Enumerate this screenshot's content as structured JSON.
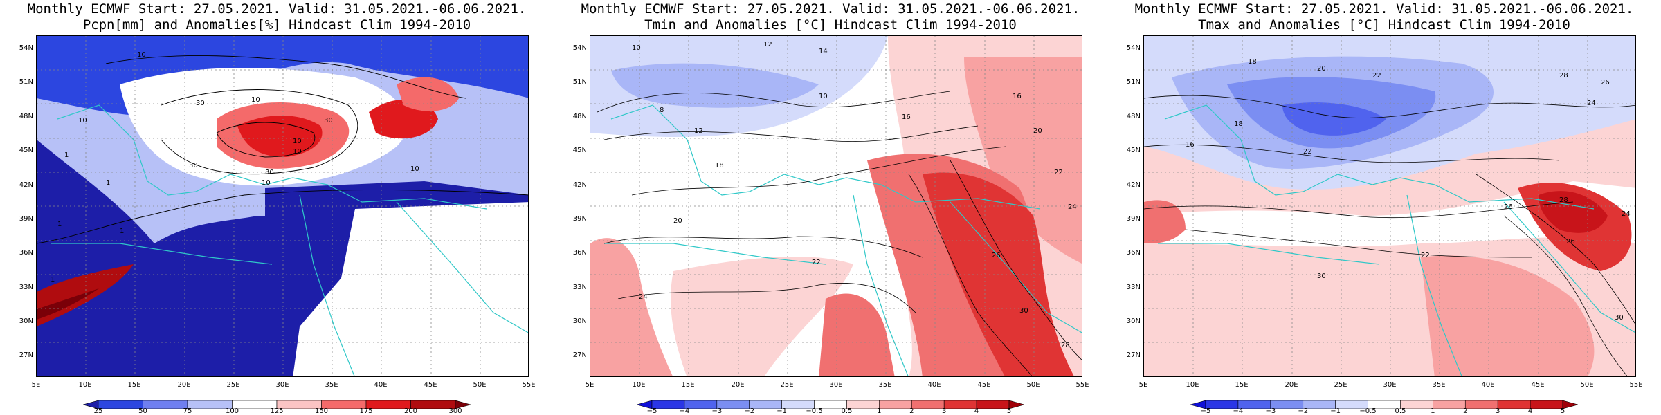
{
  "panels": [
    {
      "title1": "Monthly ECMWF Start: 27.05.2021. Valid: 31.05.2021.-06.06.2021.",
      "title2": "Pcpn[mm] and Anomalies[%] Hindcast Clim 1994-2010",
      "colorbar": {
        "labels": [
          "25",
          "50",
          "75",
          "100",
          "125",
          "150",
          "175",
          "200",
          "300"
        ],
        "colors": [
          "#1d1ea8",
          "#2c46e0",
          "#6f7ff0",
          "#b7c1f7",
          "#ffffff",
          "#fbc4c4",
          "#f46a6a",
          "#e0191d",
          "#b00c0f",
          "#7a0008"
        ]
      },
      "contour_labels": [
        "10",
        "10",
        "30",
        "30",
        "10",
        "30",
        "10",
        "10",
        "10",
        "30",
        "10",
        "1",
        "1",
        "1",
        "1",
        "1"
      ]
    },
    {
      "title1": "Monthly ECMWF Start: 27.05.2021. Valid: 31.05.2021.-06.06.2021.",
      "title2": "Tmin and Anomalies [°C] Hindcast Clim 1994-2010",
      "colorbar": {
        "labels": [
          "−5",
          "−4",
          "−3",
          "−2",
          "−1",
          "−0.5",
          "0.5",
          "1",
          "2",
          "3",
          "4",
          "5"
        ],
        "colors": [
          "#1010d8",
          "#2b36e6",
          "#5063ee",
          "#7b8ef2",
          "#a9b6f7",
          "#d4dbfb",
          "#ffffff",
          "#fcd4d4",
          "#f8a2a2",
          "#f07070",
          "#e03434",
          "#c8141a",
          "#a00008"
        ]
      },
      "contour_labels": [
        "10",
        "12",
        "14",
        "16",
        "18",
        "20",
        "22",
        "24",
        "26",
        "28",
        "30",
        "8",
        "10",
        "12",
        "16",
        "20",
        "22",
        "24"
      ]
    },
    {
      "title1": "Monthly ECMWF Start: 27.05.2021. Valid: 31.05.2021.-06.06.2021.",
      "title2": "Tmax and Anomalies [°C] Hindcast Clim 1994-2010",
      "colorbar": {
        "labels": [
          "−5",
          "−4",
          "−3",
          "−2",
          "−1",
          "−0.5",
          "0.5",
          "1",
          "2",
          "3",
          "4",
          "5"
        ],
        "colors": [
          "#1010d8",
          "#2b36e6",
          "#5063ee",
          "#7b8ef2",
          "#a9b6f7",
          "#d4dbfb",
          "#ffffff",
          "#fcd4d4",
          "#f8a2a2",
          "#f07070",
          "#e03434",
          "#c8141a",
          "#a00008"
        ]
      },
      "contour_labels": [
        "18",
        "20",
        "22",
        "24",
        "26",
        "28",
        "30",
        "16",
        "18",
        "22",
        "26",
        "28",
        "22",
        "24",
        "26",
        "30"
      ]
    }
  ],
  "axes": {
    "lat_labels": [
      "54N",
      "51N",
      "48N",
      "45N",
      "42N",
      "39N",
      "36N",
      "33N",
      "30N",
      "27N"
    ],
    "lon_labels": [
      "5E",
      "10E",
      "15E",
      "20E",
      "25E",
      "30E",
      "35E",
      "40E",
      "45E",
      "50E",
      "55E"
    ]
  },
  "colors": {
    "coast": "#30c8c8",
    "grid": "#888888"
  }
}
